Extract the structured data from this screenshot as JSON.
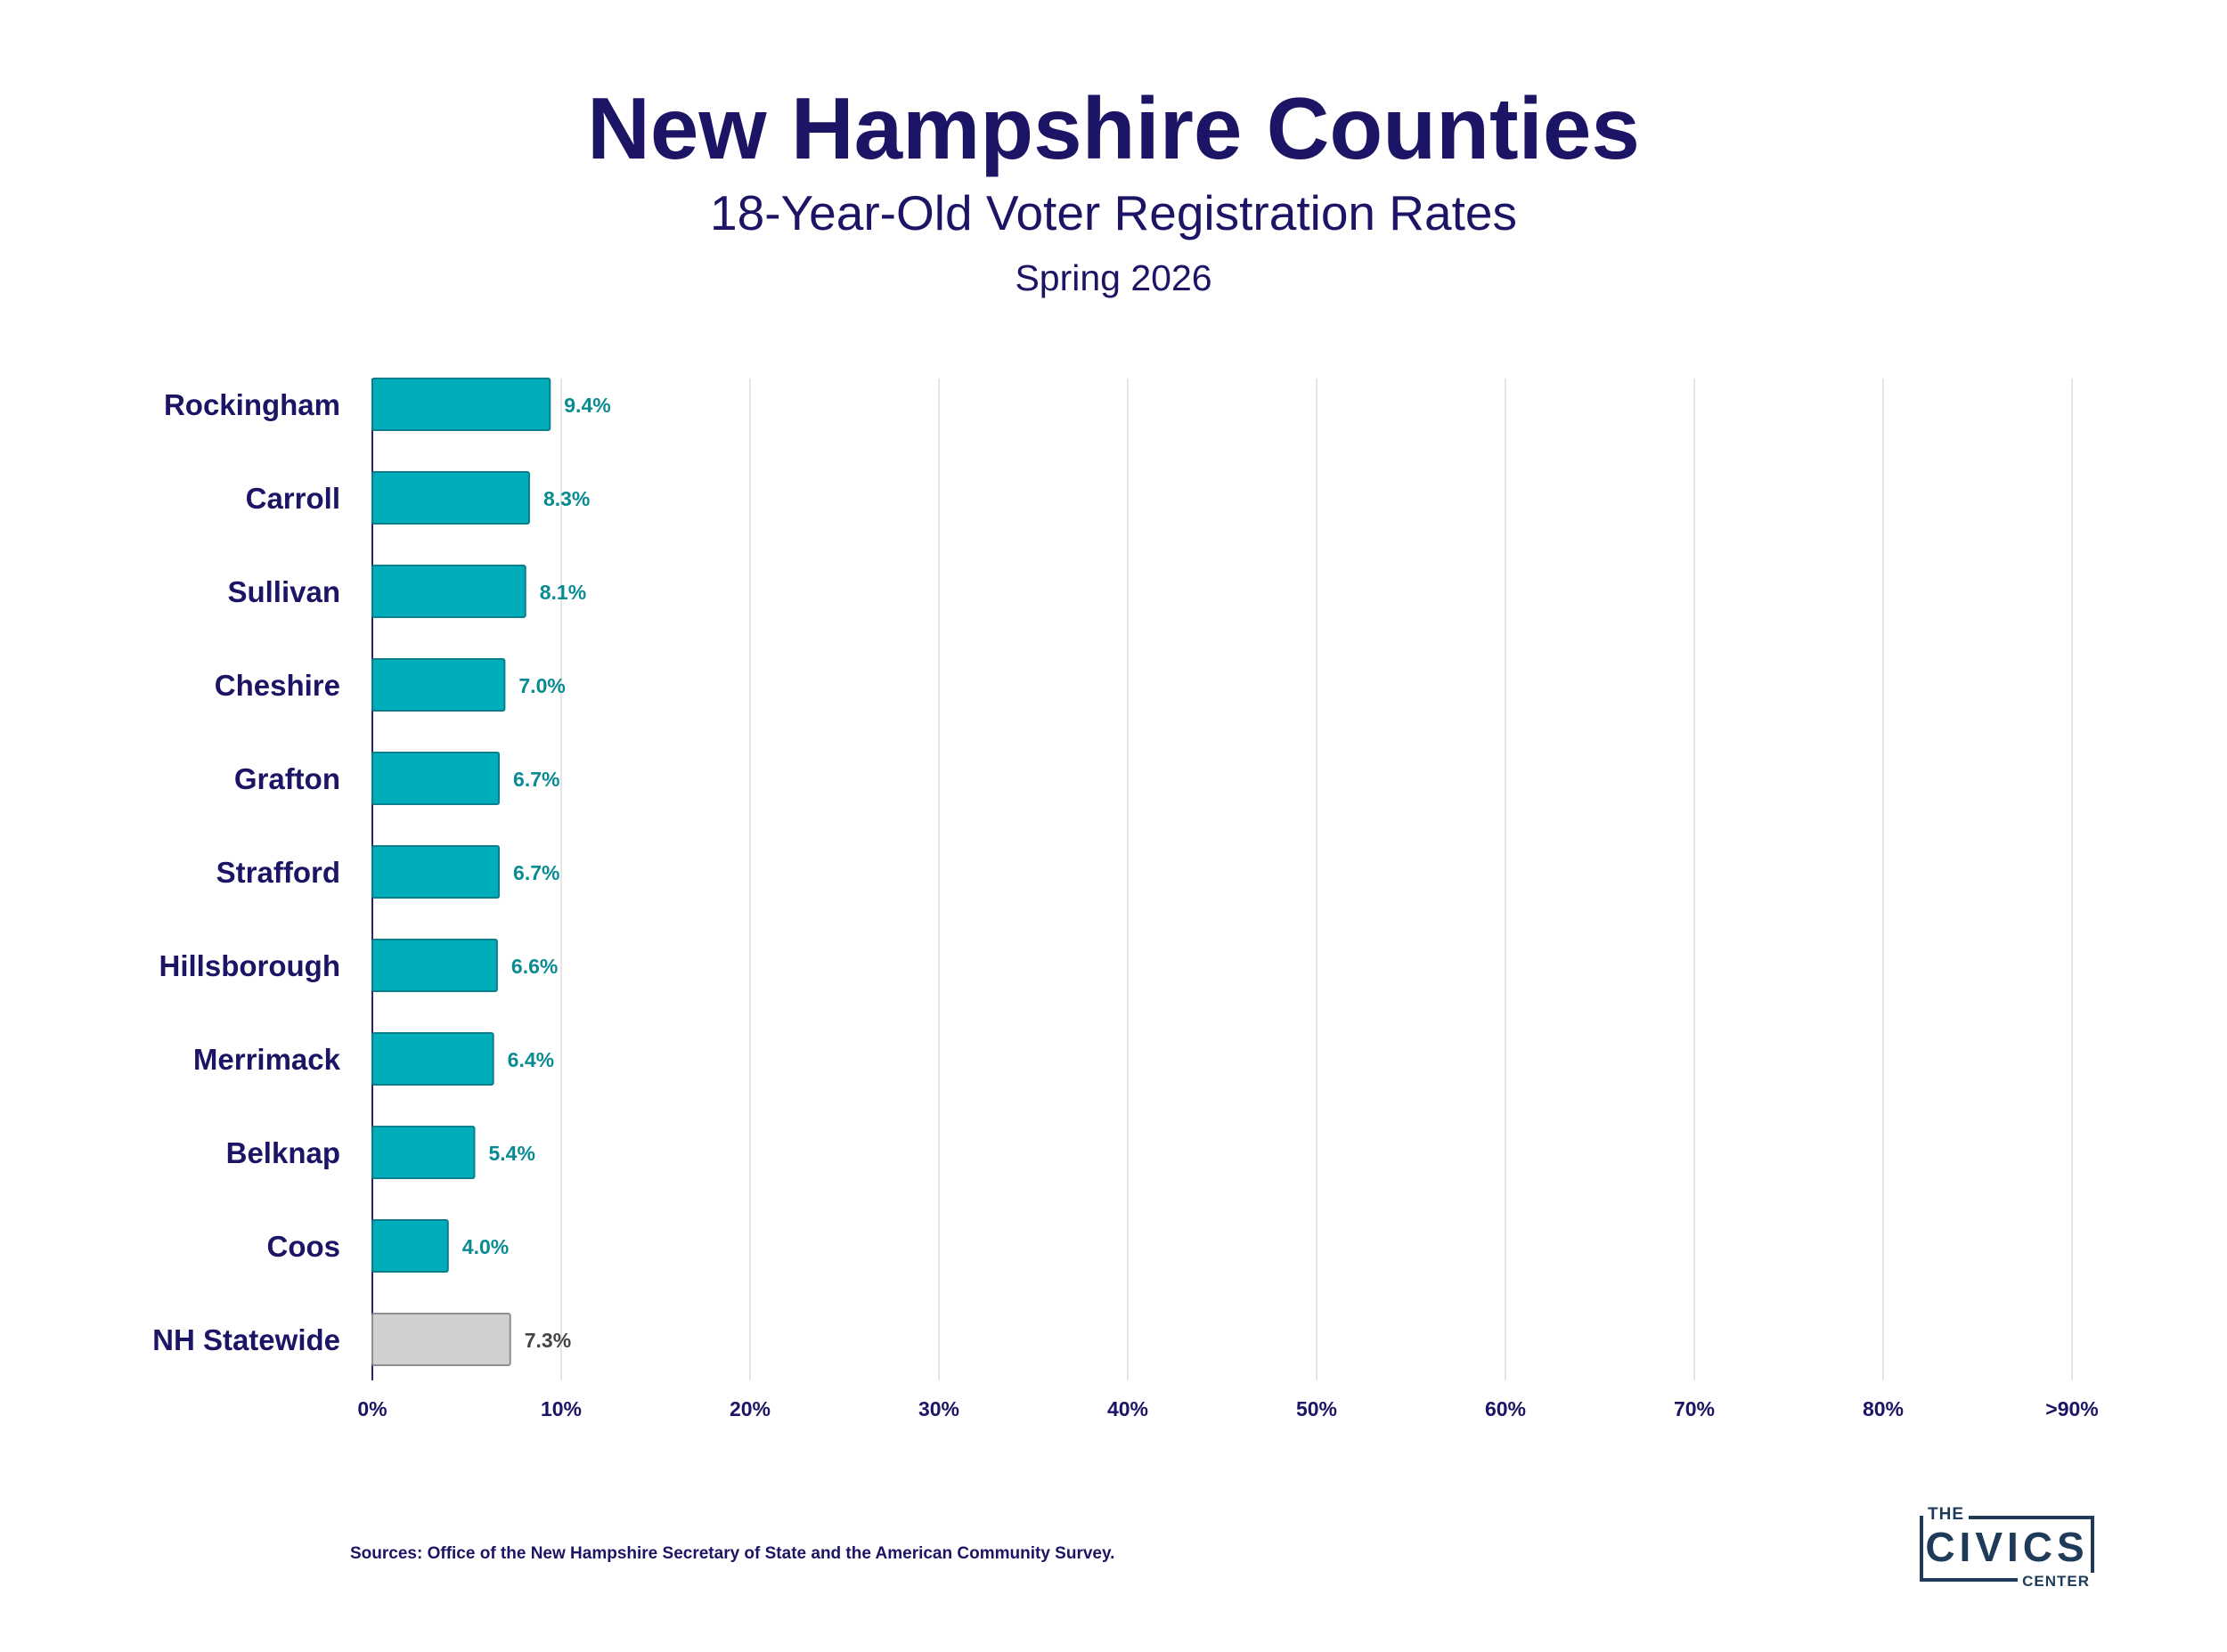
{
  "title": "New Hampshire Counties",
  "subtitle": "18-Year-Old Voter Registration Rates",
  "date": "Spring 2026",
  "source": "Sources: Office of the New Hampshire Secretary of State and the American Community Survey.",
  "logo": {
    "the": "THE",
    "name": "CIVICS",
    "center": "CENTER"
  },
  "colors": {
    "county_bar": "#00adba",
    "county_bar_border": "#0a7f8c",
    "county_label": "#0a8b94",
    "statewide_bar": "#d0d0d0",
    "statewide_bar_border": "#8f8f8f",
    "statewide_label": "#444444",
    "text": "#1c1464",
    "grid": "#e6e6e6"
  },
  "chart_data": {
    "type": "bar",
    "orientation": "horizontal",
    "categories": [
      "Rockingham",
      "Carroll",
      "Sullivan",
      "Cheshire",
      "Grafton",
      "Strafford",
      "Hillsborough",
      "Merrimack",
      "Belknap",
      "Coos",
      "NH Statewide"
    ],
    "values": [
      9.4,
      8.3,
      8.1,
      7.0,
      6.7,
      6.7,
      6.6,
      6.4,
      5.4,
      4.0,
      7.3
    ],
    "value_labels": [
      "9.4%",
      "8.3%",
      "8.1%",
      "7.0%",
      "6.7%",
      "6.7%",
      "6.6%",
      "6.4%",
      "5.4%",
      "4.0%",
      "7.3%"
    ],
    "highlight": [
      "NH Statewide"
    ],
    "xlim": [
      0,
      90
    ],
    "xticks": [
      0,
      10,
      20,
      30,
      40,
      50,
      60,
      70,
      80,
      90
    ],
    "xtick_labels": [
      "0%",
      "10%",
      "20%",
      "30%",
      "40%",
      "50%",
      "60%",
      "70%",
      "80%",
      ">90%"
    ],
    "grid": true
  }
}
